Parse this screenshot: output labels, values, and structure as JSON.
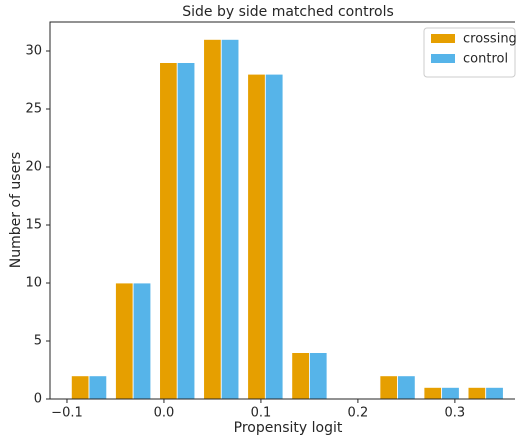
{
  "chart_data": {
    "type": "histogram",
    "title": "Side by side matched controls",
    "xlabel": "Propensity logit",
    "ylabel": "Number of users",
    "bins": [
      -0.1,
      -0.0545,
      -0.009,
      0.0364,
      0.0818,
      0.1273,
      0.1727,
      0.2182,
      0.2636,
      0.3091,
      0.3545
    ],
    "series": [
      {
        "name": "crossing",
        "color": "#E69F00",
        "values": [
          2,
          10,
          29,
          31,
          28,
          4,
          0,
          2,
          1,
          1
        ]
      },
      {
        "name": "control",
        "color": "#56B4E9",
        "values": [
          2,
          10,
          29,
          31,
          28,
          4,
          0,
          2,
          1,
          1
        ]
      }
    ],
    "xlim": [
      -0.1175,
      0.362
    ],
    "ylim": [
      0,
      32.5
    ],
    "xticks": [
      {
        "value": -0.1,
        "label": "−0.1"
      },
      {
        "value": 0,
        "label": "0.0"
      },
      0.1,
      0.2,
      0.3
    ],
    "yticks": [
      0,
      5,
      10,
      15,
      20,
      25,
      30
    ],
    "grid": false,
    "legend": "upper right"
  }
}
